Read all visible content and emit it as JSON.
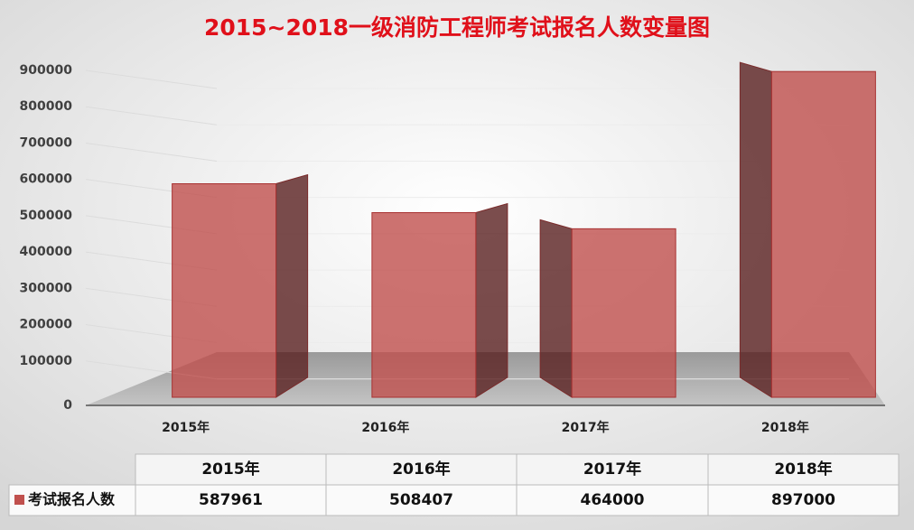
{
  "chart_data": {
    "type": "bar",
    "title": "2015~2018一级消防工程师考试报名人数变量图",
    "categories": [
      "2015年",
      "2016年",
      "2017年",
      "2018年"
    ],
    "series": [
      {
        "name": "考试报名人数",
        "color": "#c0504d",
        "values": [
          587961,
          508407,
          464000,
          897000
        ]
      }
    ],
    "ylim": [
      0,
      900000
    ],
    "yticks": [
      0,
      100000,
      200000,
      300000,
      400000,
      500000,
      600000,
      700000,
      800000,
      900000
    ],
    "grid": true
  }
}
